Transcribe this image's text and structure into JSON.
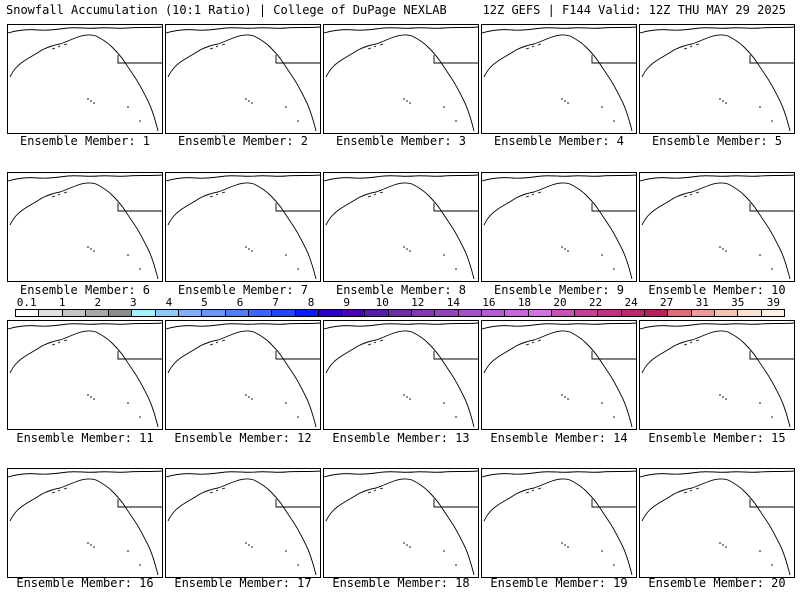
{
  "header": {
    "left": "Snowfall Accumulation (10:1 Ratio) | College of DuPage NEXLAB",
    "right": "12Z GEFS | F144 Valid: 12Z THU MAY 29 2025"
  },
  "panels": [
    {
      "member": 1,
      "label": "Ensemble Member: 1"
    },
    {
      "member": 2,
      "label": "Ensemble Member: 2"
    },
    {
      "member": 3,
      "label": "Ensemble Member: 3"
    },
    {
      "member": 4,
      "label": "Ensemble Member: 4"
    },
    {
      "member": 5,
      "label": "Ensemble Member: 5"
    },
    {
      "member": 6,
      "label": "Ensemble Member: 6"
    },
    {
      "member": 7,
      "label": "Ensemble Member: 7"
    },
    {
      "member": 8,
      "label": "Ensemble Member: 8"
    },
    {
      "member": 9,
      "label": "Ensemble Member: 9"
    },
    {
      "member": 10,
      "label": "Ensemble Member: 10"
    },
    {
      "member": 11,
      "label": "Ensemble Member: 11"
    },
    {
      "member": 12,
      "label": "Ensemble Member: 12"
    },
    {
      "member": 13,
      "label": "Ensemble Member: 13"
    },
    {
      "member": 14,
      "label": "Ensemble Member: 14"
    },
    {
      "member": 15,
      "label": "Ensemble Member: 15"
    },
    {
      "member": 16,
      "label": "Ensemble Member: 16"
    },
    {
      "member": 17,
      "label": "Ensemble Member: 17"
    },
    {
      "member": 18,
      "label": "Ensemble Member: 18"
    },
    {
      "member": 19,
      "label": "Ensemble Member: 19"
    },
    {
      "member": 20,
      "label": "Ensemble Member: 20"
    }
  ],
  "colorbar": {
    "labels": [
      "0.1",
      "1",
      "2",
      "3",
      "4",
      "5",
      "6",
      "7",
      "8",
      "9",
      "10",
      "12",
      "14",
      "16",
      "18",
      "20",
      "22",
      "24",
      "27",
      "31",
      "35",
      "39"
    ],
    "colors": [
      "#ffffff",
      "#e0e0e0",
      "#c4c4c4",
      "#a8a8a8",
      "#8c8c8c",
      "#9ff3ff",
      "#8ec8ff",
      "#7fb0ff",
      "#6a97ff",
      "#4f7dff",
      "#3a63ff",
      "#1f45ff",
      "#0a1aff",
      "#2a00c8",
      "#4a00b8",
      "#5a1ab0",
      "#6e2aa8",
      "#8236b4",
      "#9442c0",
      "#a64ecc",
      "#b85ad8",
      "#c666dc",
      "#d372e0",
      "#cc4fb8",
      "#c83c9c",
      "#c42e84",
      "#c0246c",
      "#bc1e58",
      "#e06a78",
      "#ee9a9a",
      "#f6c4b0",
      "#fae2d0",
      "#fff0e6"
    ]
  }
}
